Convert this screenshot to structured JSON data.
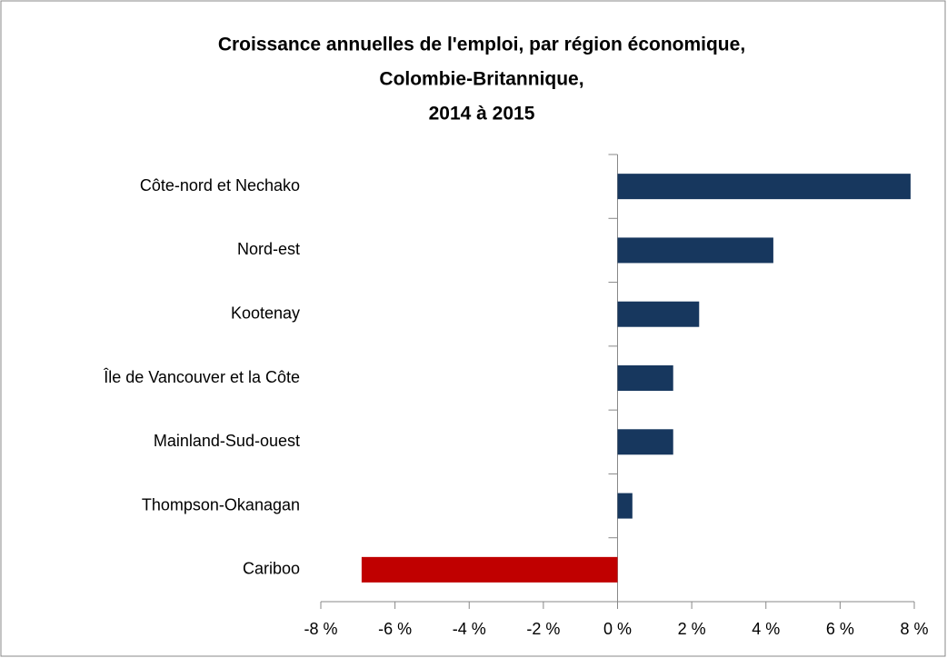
{
  "chart_data": {
    "type": "hbar",
    "title": [
      "Croissance annuelles de l'emploi, par région économique,",
      "Colombie-Britannique,",
      "2014 à 2015"
    ],
    "categories": [
      "Côte-nord et Nechako",
      "Nord-est",
      "Kootenay",
      "Île de Vancouver et la Côte",
      "Mainland-Sud-ouest",
      "Thompson-Okanagan",
      "Cariboo"
    ],
    "values": [
      7.9,
      4.2,
      2.2,
      1.5,
      1.5,
      0.4,
      -6.9
    ],
    "colors": [
      "#17375e",
      "#17375e",
      "#17375e",
      "#17375e",
      "#17375e",
      "#17375e",
      "#c00000"
    ],
    "xlim": [
      -8,
      8
    ],
    "xticks": [
      {
        "value": -8,
        "label": "-8 %"
      },
      {
        "value": -6,
        "label": "-6 %"
      },
      {
        "value": -4,
        "label": "-4 %"
      },
      {
        "value": -2,
        "label": "-2 %"
      },
      {
        "value": 0,
        "label": "0 %"
      },
      {
        "value": 2,
        "label": "2 %"
      },
      {
        "value": 4,
        "label": "4 %"
      },
      {
        "value": 6,
        "label": "6 %"
      },
      {
        "value": 8,
        "label": "8 %"
      }
    ],
    "grid": false
  }
}
